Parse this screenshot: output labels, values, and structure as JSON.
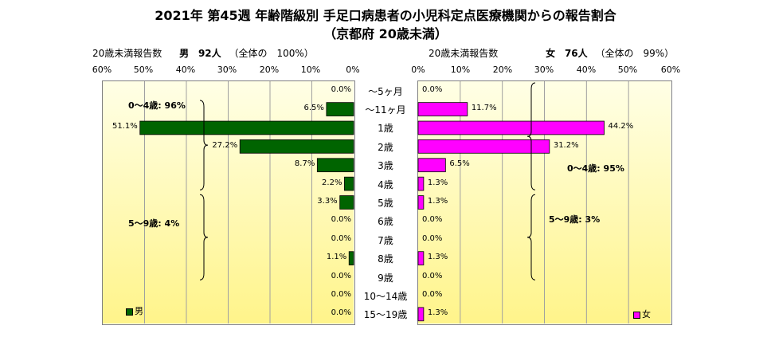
{
  "title_line1": "2021年 第45週 年齢階級別 手足口病患者の小児科定点医療機関からの報告割合",
  "title_line2": "（京都府 20歳未満）",
  "colors": {
    "male": "#006400",
    "female": "#ff00ff",
    "plot_bg_top": "#ffffe6",
    "plot_bg_bottom": "#fff48a"
  },
  "left_header": {
    "label": "20歳未満報告数",
    "sex": "男",
    "count": "92人",
    "share": "（全体の　100%）"
  },
  "right_header": {
    "label": "20歳未満報告数",
    "sex": "女",
    "count": "76人",
    "share": "（全体の　99%）"
  },
  "left_ticks": [
    "60%",
    "50%",
    "40%",
    "30%",
    "20%",
    "10%",
    "0%"
  ],
  "right_ticks": [
    "0%",
    "10%",
    "20%",
    "30%",
    "40%",
    "50%",
    "60%"
  ],
  "annotations": {
    "male_0_4": "0～4歳: 96%",
    "male_5_9": "5～9歳: 4%",
    "female_0_4": "0～4歳: 95%",
    "female_5_9": "5～9歳: 3%"
  },
  "legend": {
    "male": "男",
    "female": "女"
  },
  "chart_data": {
    "type": "bar",
    "orientation": "horizontal-butterfly",
    "categories": [
      "～5ヶ月",
      "～11ヶ月",
      "1歳",
      "2歳",
      "3歳",
      "4歳",
      "5歳",
      "6歳",
      "7歳",
      "8歳",
      "9歳",
      "10～14歳",
      "15～19歳"
    ],
    "series": [
      {
        "name": "男",
        "values": [
          0.0,
          6.5,
          51.1,
          27.2,
          8.7,
          2.2,
          3.3,
          0.0,
          0.0,
          1.1,
          0.0,
          0.0,
          0.0
        ],
        "labels": [
          "0.0%",
          "6.5%",
          "51.1%",
          "27.2%",
          "8.7%",
          "2.2%",
          "3.3%",
          "0.0%",
          "0.0%",
          "1.1%",
          "0.0%",
          "0.0%",
          "0.0%"
        ]
      },
      {
        "name": "女",
        "values": [
          0.0,
          11.7,
          44.2,
          31.2,
          6.5,
          1.3,
          1.3,
          0.0,
          0.0,
          1.3,
          0.0,
          0.0,
          1.3
        ],
        "labels": [
          "0.0%",
          "11.7%",
          "44.2%",
          "31.2%",
          "6.5%",
          "1.3%",
          "1.3%",
          "0.0%",
          "0.0%",
          "1.3%",
          "0.0%",
          "0.0%",
          "1.3%"
        ]
      }
    ],
    "xlim": [
      0,
      60
    ],
    "unit": "%",
    "grid": true,
    "legend_position": "bottom"
  }
}
